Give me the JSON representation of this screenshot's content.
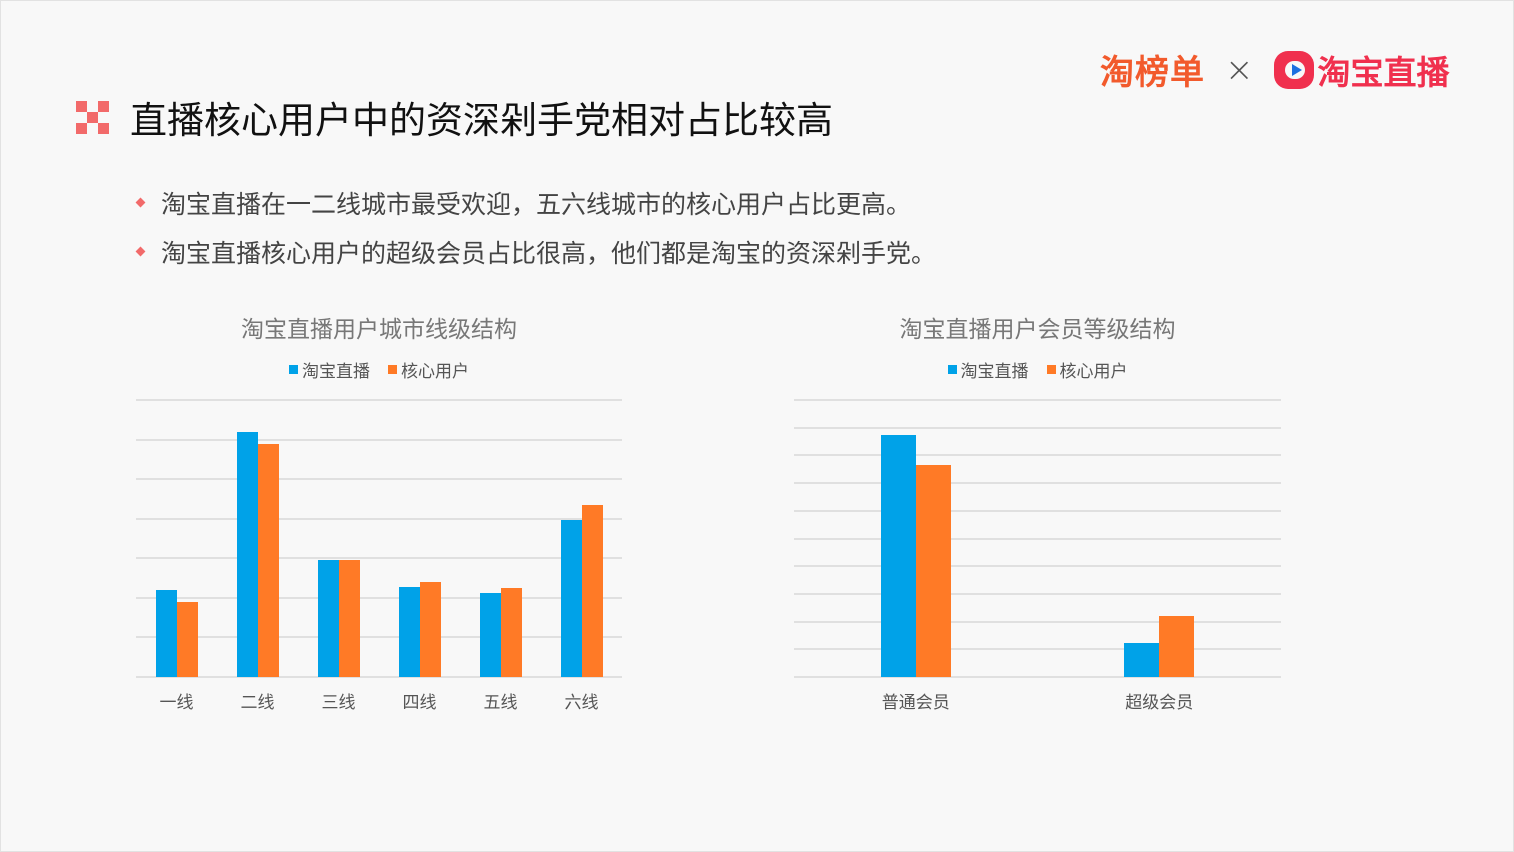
{
  "page": {
    "title": "直播核心用户中的资深剁手党相对占比较高",
    "logo_left": "淘榜单",
    "logo_separator": "×",
    "logo_right": "淘宝直播",
    "bullets": [
      "淘宝直播在一二线城市最受欢迎，五六线城市的核心用户占比更高。",
      "淘宝直播核心用户的超级会员占比很高，他们都是淘宝的资深剁手党。"
    ],
    "colors": {
      "series_a": "#00a2e8",
      "series_b": "#ff7a26",
      "accent": "#f26a6a"
    }
  },
  "chart_data": [
    {
      "type": "bar",
      "title": "淘宝直播用户城市线级结构",
      "categories": [
        "一线",
        "二线",
        "三线",
        "四线",
        "五线",
        "六线"
      ],
      "series": [
        {
          "name": "淘宝直播",
          "values": [
            11.0,
            30.9,
            14.8,
            11.4,
            10.6,
            19.8
          ]
        },
        {
          "name": "核心用户",
          "values": [
            9.5,
            29.4,
            14.8,
            12.0,
            11.2,
            21.7
          ]
        }
      ],
      "xlabel": "",
      "ylabel": "",
      "ylim": [
        0,
        35
      ],
      "grid": true,
      "legend_position": "top"
    },
    {
      "type": "bar",
      "title": "淘宝直播用户会员等级结构",
      "categories": [
        "普通会员",
        "超级会员"
      ],
      "series": [
        {
          "name": "淘宝直播",
          "values": [
            87.4,
            12.3
          ]
        },
        {
          "name": "核心用户",
          "values": [
            76.5,
            22.0
          ]
        }
      ],
      "xlabel": "",
      "ylabel": "",
      "ylim": [
        0,
        100
      ],
      "grid": true,
      "legend_position": "top"
    }
  ]
}
